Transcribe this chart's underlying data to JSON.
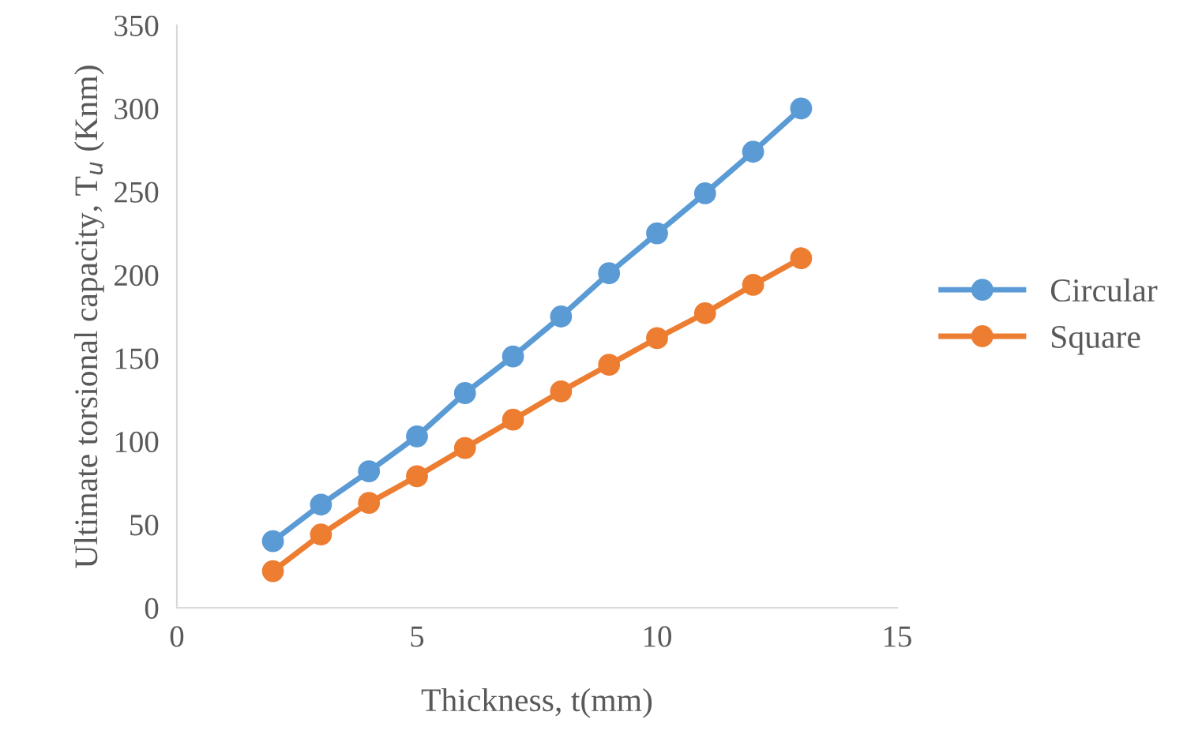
{
  "chart_data": {
    "type": "line",
    "xlabel": "Thickness, t(mm)",
    "ylabel": "Ultimate torsional capacity, T$_{u}$ (Knm)",
    "x": [
      2,
      3,
      4,
      5,
      6,
      7,
      8,
      9,
      10,
      11,
      12,
      13
    ],
    "series": [
      {
        "name": "Circular",
        "color": "#5b9bd5",
        "values": [
          40,
          62,
          82,
          103,
          129,
          151,
          175,
          201,
          225,
          249,
          274,
          300
        ]
      },
      {
        "name": "Square",
        "color": "#ed7d31",
        "values": [
          22,
          44,
          63,
          79,
          96,
          113,
          130,
          146,
          162,
          177,
          194,
          210
        ]
      }
    ],
    "xlim": [
      0,
      15
    ],
    "xticks": [
      0,
      5,
      10,
      15
    ],
    "ylim": [
      0,
      350
    ],
    "yticks": [
      0,
      50,
      100,
      150,
      200,
      250,
      300,
      350
    ],
    "grid": false,
    "legend": "right",
    "marker": "circle",
    "line_style": "solid"
  }
}
